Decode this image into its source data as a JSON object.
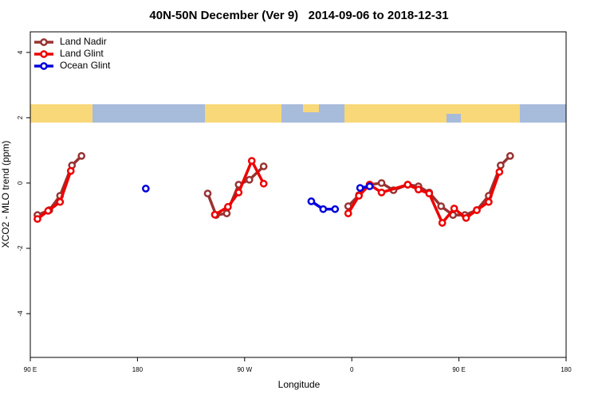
{
  "chart_data": {
    "type": "line",
    "title": "40N-50N December (Ver 9)   2014-09-06 to 2018-12-31",
    "x_label": "Longitude",
    "y_label": "XCO2 - MLO trend (ppm)",
    "xlim": [
      90,
      540
    ],
    "ylim": [
      -5.34,
      4.63
    ],
    "xticks": [
      {
        "value": 90,
        "label": "90 E"
      },
      180,
      {
        "value": 270,
        "label": "90 W"
      },
      {
        "value": 360,
        "label": "0"
      },
      {
        "value": 450,
        "label": "90 E"
      },
      {
        "value": 540,
        "label": "180"
      }
    ],
    "yticks": [
      4,
      2,
      0,
      -2,
      -4
    ],
    "legend": "top-left",
    "series": [
      {
        "name": "Land Nadir",
        "color": "#993333",
        "x": [
          96,
          106,
          115,
          125,
          133,
          null,
          239,
          246,
          255,
          265,
          274,
          286,
          null,
          357,
          366,
          375,
          385,
          395,
          407,
          416,
          425,
          435,
          445,
          455,
          465,
          475,
          485,
          493
        ],
        "values": [
          -0.98,
          -0.83,
          -0.39,
          0.54,
          0.83,
          null,
          -0.32,
          -0.98,
          -0.93,
          -0.05,
          0.1,
          0.51,
          null,
          -0.71,
          -0.37,
          -0.05,
          0,
          -0.22,
          -0.05,
          -0.1,
          -0.29,
          -0.71,
          -0.98,
          -0.98,
          -0.83,
          -0.39,
          0.54,
          0.83
        ]
      },
      {
        "name": "Land Glint",
        "color": "#ee0000",
        "x": [
          96,
          105,
          115,
          124,
          null,
          245,
          256,
          265,
          276,
          286,
          null,
          357,
          366,
          375,
          385,
          407,
          416,
          425,
          436,
          446,
          456,
          465,
          475,
          484
        ],
        "values": [
          -1.1,
          -0.85,
          -0.58,
          0.37,
          null,
          -0.97,
          -0.73,
          -0.29,
          0.68,
          -0.02,
          null,
          -0.93,
          -0.39,
          -0.05,
          -0.29,
          -0.05,
          -0.2,
          -0.32,
          -1.22,
          -0.78,
          -1.07,
          -0.83,
          -0.58,
          0.34
        ]
      },
      {
        "name": "Ocean Glint",
        "color": "#0000dd",
        "x": [
          187,
          null,
          326,
          336,
          346,
          null,
          367,
          375
        ],
        "values": [
          -0.17,
          null,
          -0.56,
          -0.8,
          -0.8,
          null,
          -0.15,
          -0.1
        ]
      }
    ]
  }
}
